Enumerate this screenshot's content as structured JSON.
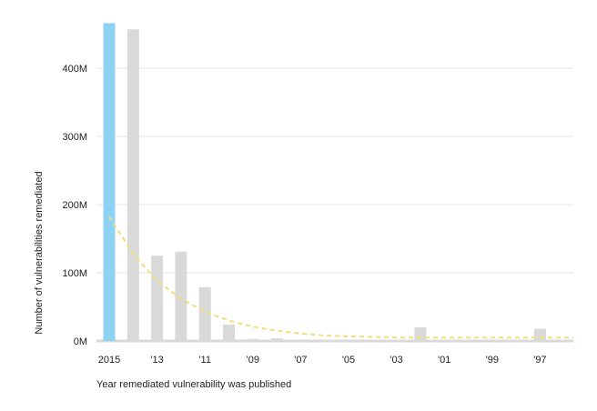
{
  "chart_data": {
    "type": "bar",
    "xlabel": "Year remediated vulnerability was published",
    "ylabel": "Number of vulnerabilities remediated",
    "ylim": [
      0,
      470
    ],
    "y_unit": "M",
    "y_ticks": [
      0,
      100,
      200,
      300,
      400
    ],
    "y_tick_labels": [
      "0M",
      "100M",
      "200M",
      "300M",
      "400M"
    ],
    "grid": true,
    "categories": [
      "2015",
      "2014",
      "2013",
      "2012",
      "2011",
      "2010",
      "2009",
      "2008",
      "2007",
      "2006",
      "2005",
      "2004",
      "2003",
      "2002",
      "2001",
      "2000",
      "1999",
      "1998",
      "1997",
      "1996"
    ],
    "values": [
      466,
      457,
      125,
      131,
      79,
      24,
      3,
      4,
      1,
      1,
      1,
      1,
      1,
      20,
      1,
      1,
      1,
      1,
      18,
      1
    ],
    "x_tick_labels": [
      {
        "category": "2015",
        "label": "2015"
      },
      {
        "category": "2013",
        "label": "'13"
      },
      {
        "category": "2011",
        "label": "'11"
      },
      {
        "category": "2009",
        "label": "'09"
      },
      {
        "category": "2007",
        "label": "'07"
      },
      {
        "category": "2005",
        "label": "'05"
      },
      {
        "category": "2003",
        "label": "'03"
      },
      {
        "category": "2001",
        "label": "'01"
      },
      {
        "category": "1999",
        "label": "'99"
      },
      {
        "category": "1997",
        "label": "'97"
      }
    ],
    "highlight_category": "2015",
    "trendline": {
      "style": "dashed",
      "points": [
        [
          2015,
          182
        ],
        [
          2014,
          128
        ],
        [
          2013,
          88
        ],
        [
          2012,
          62
        ],
        [
          2011,
          43
        ],
        [
          2010,
          30
        ],
        [
          2009,
          21
        ],
        [
          2008,
          15
        ],
        [
          2007,
          11
        ],
        [
          2006,
          8
        ],
        [
          2005,
          7
        ],
        [
          2004,
          6
        ],
        [
          2003,
          5
        ],
        [
          2002,
          5
        ],
        [
          2001,
          5
        ],
        [
          2000,
          5
        ],
        [
          1999,
          5
        ],
        [
          1998,
          5
        ],
        [
          1997,
          5
        ],
        [
          1996,
          5
        ]
      ]
    },
    "colors": {
      "highlight_bar": "#8fd3f4",
      "bar": "#d9d9d9",
      "trendline": "#f2dc7c",
      "grid": "#e6e6e6",
      "baseline": "#d9d9d9"
    }
  }
}
